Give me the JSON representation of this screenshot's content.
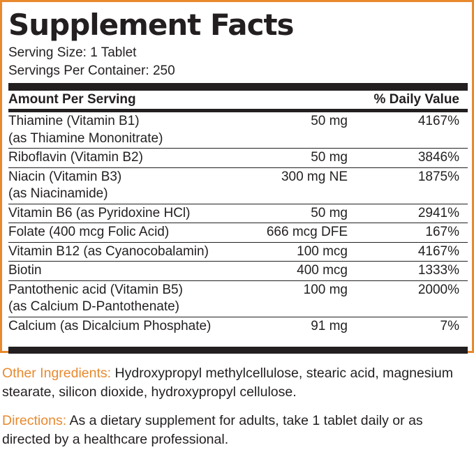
{
  "title": "Supplement Facts",
  "serving_size": "Serving Size: 1 Tablet",
  "servings_per_container": "Servings Per Container: 250",
  "header": {
    "amount": "Amount Per Serving",
    "daily_value": "% Daily Value"
  },
  "rows": [
    {
      "name": "Thiamine (Vitamin B1)",
      "sub": "(as Thiamine Mononitrate)",
      "amount": "50 mg",
      "dv": "4167%"
    },
    {
      "name": "Riboflavin (Vitamin B2)",
      "sub": "",
      "amount": "50 mg",
      "dv": "3846%"
    },
    {
      "name": "Niacin (Vitamin B3)",
      "sub": "(as Niacinamide)",
      "amount": "300 mg NE",
      "dv": "1875%"
    },
    {
      "name": "Vitamin B6 (as Pyridoxine HCl)",
      "sub": "",
      "amount": "50 mg",
      "dv": "2941%"
    },
    {
      "name": "Folate (400 mcg Folic Acid)",
      "sub": "",
      "amount": "666 mcg DFE",
      "dv": "167%"
    },
    {
      "name": "Vitamin B12 (as Cyanocobalamin)",
      "sub": "",
      "amount": "100 mcg",
      "dv": "4167%"
    },
    {
      "name": "Biotin",
      "sub": "",
      "amount": "400 mcg",
      "dv": "1333%"
    },
    {
      "name": "Pantothenic acid (Vitamin B5)",
      "sub": "(as Calcium D-Pantothenate)",
      "amount": "100 mg",
      "dv": "2000%"
    },
    {
      "name": "Calcium (as Dicalcium Phosphate)",
      "sub": "",
      "amount": "91 mg",
      "dv": "7%"
    }
  ],
  "other_ingredients": {
    "label": "Other Ingredients:",
    "text": " Hydroxypropyl methylcellulose, stearic acid, magnesium stearate, silicon dioxide, hydroxypropyl cellulose."
  },
  "directions": {
    "label": "Directions:",
    "text": " As a dietary supplement for adults, take 1 tablet daily or as directed by a healthcare professional."
  },
  "colors": {
    "accent": "#e8892e",
    "text": "#231f20"
  }
}
